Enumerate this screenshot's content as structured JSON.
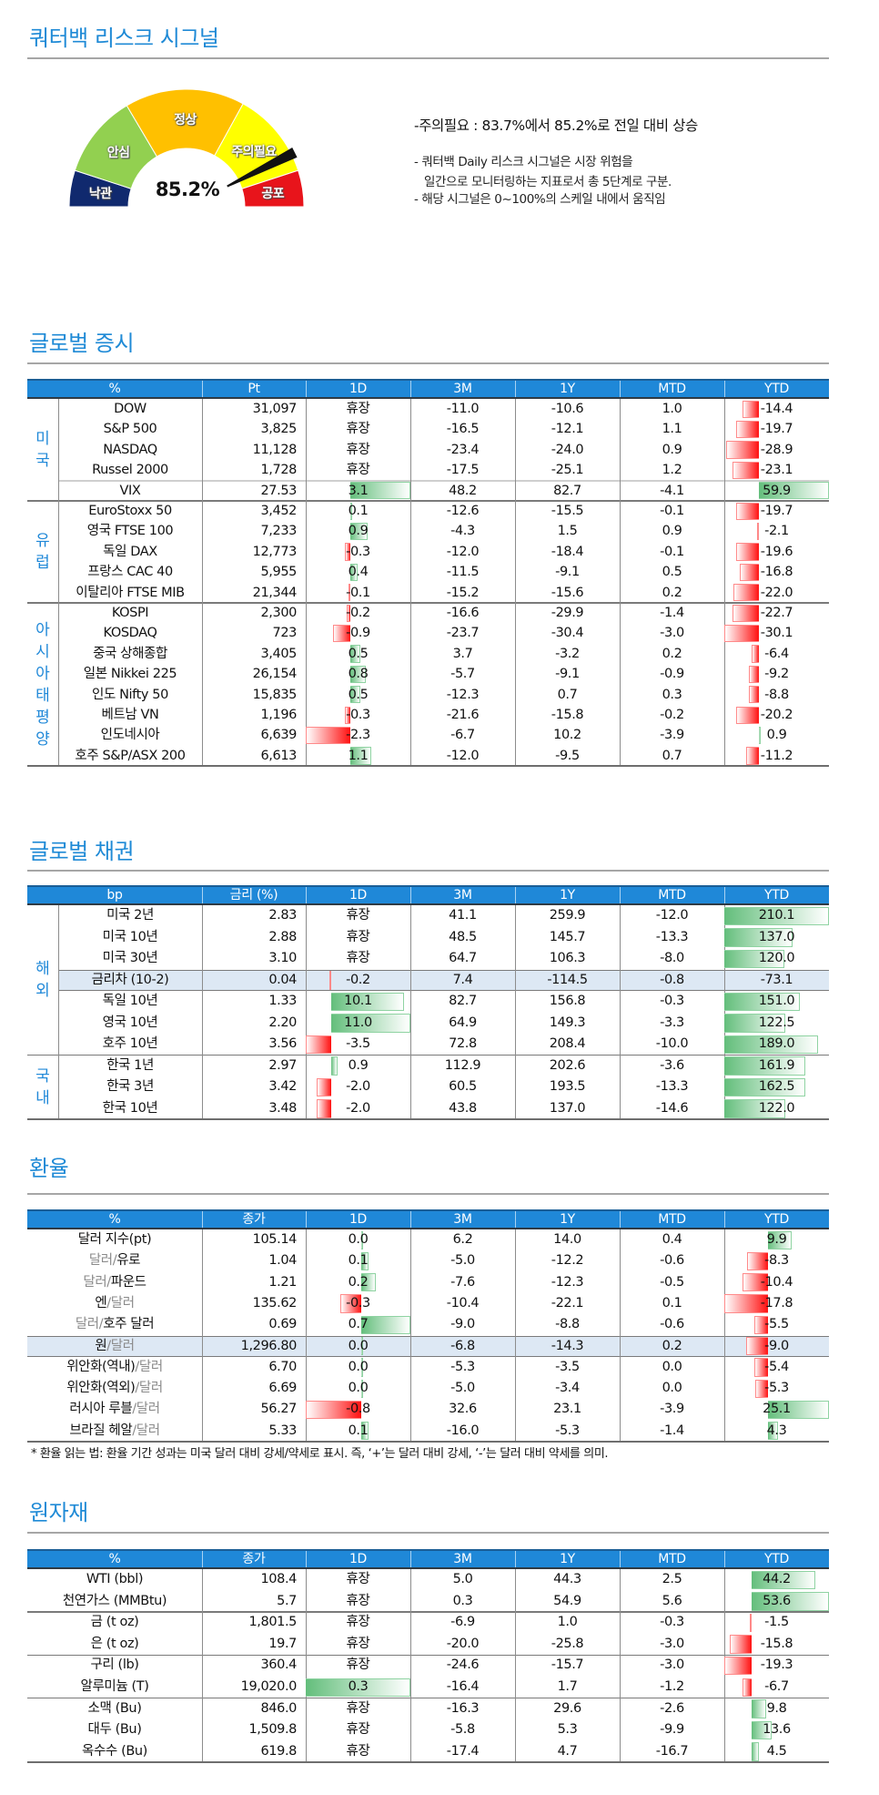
{
  "signal": {
    "title": "쿼터백 리스크 시그널",
    "value_label": "85.2%",
    "value": 85.2,
    "segments": [
      {
        "label": "낙관",
        "range": [
          0,
          10
        ],
        "color": "#10296e"
      },
      {
        "label": "안심",
        "range": [
          10,
          33
        ],
        "color": "#92d050"
      },
      {
        "label": "정상",
        "range": [
          33,
          66
        ],
        "color": "#ffc000"
      },
      {
        "label": "주의필요",
        "range": [
          66,
          90
        ],
        "color": "#ffff00"
      },
      {
        "label": "공포",
        "range": [
          90,
          100
        ],
        "color": "#e8141b"
      }
    ],
    "headline": "-주의필요 : 83.7%에서 85.2%로 전일 대비 상승",
    "notes": [
      "- 쿼터백 Daily 리스크 시그널은 시장 위험을",
      "일간으로 모니터링하는 지표로서 총 5단계로 구분.",
      "- 해당 시그널은 0~100%의 스케일 내에서 움직임"
    ]
  },
  "sections": {
    "stocks": "글로벌 증시",
    "bonds": "글로벌 채권",
    "fx": "환율",
    "commodities": "원자재"
  },
  "tables": {
    "stocks": {
      "headers": [
        "%",
        "Pt",
        "1D",
        "3M",
        "1Y",
        "MTD",
        "YTD"
      ],
      "groups": [
        {
          "label": "미국",
          "rows": [
            {
              "name": "DOW",
              "v": [
                "31,097",
                "휴장",
                "-11.0",
                "-10.6",
                "1.0",
                "-14.4"
              ]
            },
            {
              "name": "S&P 500",
              "v": [
                "3,825",
                "휴장",
                "-16.5",
                "-12.1",
                "1.1",
                "-19.7"
              ]
            },
            {
              "name": "NASDAQ",
              "v": [
                "11,128",
                "휴장",
                "-23.4",
                "-24.0",
                "0.9",
                "-28.9"
              ]
            },
            {
              "name": "Russel 2000",
              "v": [
                "1,728",
                "휴장",
                "-17.5",
                "-25.1",
                "1.2",
                "-23.1"
              ]
            },
            {
              "name": "VIX",
              "v": [
                "27.53",
                "3.1",
                "48.2",
                "82.7",
                "-4.1",
                "59.9"
              ]
            }
          ]
        },
        {
          "label": "유럽",
          "rows": [
            {
              "name": "EuroStoxx 50",
              "v": [
                "3,452",
                "0.1",
                "-12.6",
                "-15.5",
                "-0.1",
                "-19.7"
              ]
            },
            {
              "name": "영국 FTSE 100",
              "v": [
                "7,233",
                "0.9",
                "-4.3",
                "1.5",
                "0.9",
                "-2.1"
              ]
            },
            {
              "name": "독일 DAX",
              "v": [
                "12,773",
                "-0.3",
                "-12.0",
                "-18.4",
                "-0.1",
                "-19.6"
              ]
            },
            {
              "name": "프랑스 CAC 40",
              "v": [
                "5,955",
                "0.4",
                "-11.5",
                "-9.1",
                "0.5",
                "-16.8"
              ]
            },
            {
              "name": "이탈리아 FTSE MIB",
              "v": [
                "21,344",
                "-0.1",
                "-15.2",
                "-15.6",
                "0.2",
                "-22.0"
              ]
            }
          ]
        },
        {
          "label": "아시아태평양",
          "rows": [
            {
              "name": "KOSPI",
              "v": [
                "2,300",
                "-0.2",
                "-16.6",
                "-29.9",
                "-1.4",
                "-22.7"
              ]
            },
            {
              "name": "KOSDAQ",
              "v": [
                "723",
                "-0.9",
                "-23.7",
                "-30.4",
                "-3.0",
                "-30.1"
              ]
            },
            {
              "name": "중국 상해종합",
              "v": [
                "3,405",
                "0.5",
                "3.7",
                "-3.2",
                "0.2",
                "-6.4"
              ]
            },
            {
              "name": "일본 Nikkei 225",
              "v": [
                "26,154",
                "0.8",
                "-5.7",
                "-9.1",
                "-0.9",
                "-9.2"
              ]
            },
            {
              "name": "인도 Nifty 50",
              "v": [
                "15,835",
                "0.5",
                "-12.3",
                "0.7",
                "0.3",
                "-8.8"
              ]
            },
            {
              "name": "베트남 VN",
              "v": [
                "1,196",
                "-0.3",
                "-21.6",
                "-15.8",
                "-0.2",
                "-20.2"
              ]
            },
            {
              "name": "인도네시아",
              "v": [
                "6,639",
                "-2.3",
                "-6.7",
                "10.2",
                "-3.9",
                "0.9"
              ]
            },
            {
              "name": "호주 S&P/ASX 200",
              "v": [
                "6,613",
                "1.1",
                "-12.0",
                "-9.5",
                "0.7",
                "-11.2"
              ]
            }
          ]
        }
      ]
    },
    "bonds": {
      "headers": [
        "bp",
        "금리 (%)",
        "1D",
        "3M",
        "1Y",
        "MTD",
        "YTD"
      ],
      "groups": [
        {
          "label": "해외",
          "rows": [
            {
              "name": "미국 2년",
              "v": [
                "2.83",
                "휴장",
                "41.1",
                "259.9",
                "-12.0",
                "210.1"
              ]
            },
            {
              "name": "미국 10년",
              "v": [
                "2.88",
                "휴장",
                "48.5",
                "145.7",
                "-13.3",
                "137.0"
              ]
            },
            {
              "name": "미국 30년",
              "v": [
                "3.10",
                "휴장",
                "64.7",
                "106.3",
                "-8.0",
                "120.0"
              ]
            },
            {
              "name": "금리차 (10-2)",
              "v": [
                "0.04",
                "-0.2",
                "7.4",
                "-114.5",
                "-0.8",
                "-73.1"
              ],
              "ytd_bar": false
            },
            {
              "name": "독일 10년",
              "v": [
                "1.33",
                "10.1",
                "82.7",
                "156.8",
                "-0.3",
                "151.0"
              ]
            },
            {
              "name": "영국 10년",
              "v": [
                "2.20",
                "11.0",
                "64.9",
                "149.3",
                "-3.3",
                "122.5"
              ]
            },
            {
              "name": "호주 10년",
              "v": [
                "3.56",
                "-3.5",
                "72.8",
                "208.4",
                "-10.0",
                "189.0"
              ]
            }
          ]
        },
        {
          "label": "국내",
          "rows": [
            {
              "name": "한국 1년",
              "v": [
                "2.97",
                "0.9",
                "112.9",
                "202.6",
                "-3.6",
                "161.9"
              ]
            },
            {
              "name": "한국 3년",
              "v": [
                "3.42",
                "-2.0",
                "60.5",
                "193.5",
                "-13.3",
                "162.5"
              ]
            },
            {
              "name": "한국 10년",
              "v": [
                "3.48",
                "-2.0",
                "43.8",
                "137.0",
                "-14.6",
                "122.0"
              ]
            }
          ]
        }
      ]
    },
    "fx": {
      "headers": [
        "%",
        "종가",
        "1D",
        "3M",
        "1Y",
        "MTD",
        "YTD"
      ],
      "groups": [
        {
          "label": "",
          "rows": [
            {
              "name": [
                {
                  "t": "달러 지수(pt)"
                }
              ],
              "v": [
                "105.14",
                "0.0",
                "6.2",
                "14.0",
                "0.4",
                "9.9"
              ]
            },
            {
              "name": [
                {
                  "t": "달러/",
                  "muted": true
                },
                {
                  "t": "유로"
                }
              ],
              "v": [
                "1.04",
                "0.1",
                "-5.0",
                "-12.2",
                "-0.6",
                "-8.3"
              ]
            },
            {
              "name": [
                {
                  "t": "달러/",
                  "muted": true
                },
                {
                  "t": "파운드"
                }
              ],
              "v": [
                "1.21",
                "0.2",
                "-7.6",
                "-12.3",
                "-0.5",
                "-10.4"
              ]
            },
            {
              "name": [
                {
                  "t": "엔"
                },
                {
                  "t": "/달러",
                  "muted": true
                }
              ],
              "v": [
                "135.62",
                "-0.3",
                "-10.4",
                "-22.1",
                "0.1",
                "-17.8"
              ]
            },
            {
              "name": [
                {
                  "t": "달러/",
                  "muted": true
                },
                {
                  "t": "호주 달러"
                }
              ],
              "v": [
                "0.69",
                "0.7",
                "-9.0",
                "-8.8",
                "-0.6",
                "-5.5"
              ]
            },
            {
              "name": [
                {
                  "t": "원"
                },
                {
                  "t": "/달러",
                  "muted": true
                }
              ],
              "v": [
                "1,296.80",
                "0.0",
                "-6.8",
                "-14.3",
                "0.2",
                "-9.0"
              ]
            },
            {
              "name": [
                {
                  "t": "위안화(역내)"
                },
                {
                  "t": "/달러",
                  "muted": true
                }
              ],
              "v": [
                "6.70",
                "0.0",
                "-5.3",
                "-3.5",
                "0.0",
                "-5.4"
              ]
            },
            {
              "name": [
                {
                  "t": "위안화(역외)"
                },
                {
                  "t": "/달러",
                  "muted": true
                }
              ],
              "v": [
                "6.69",
                "0.0",
                "-5.0",
                "-3.4",
                "0.0",
                "-5.3"
              ]
            },
            {
              "name": [
                {
                  "t": "러시아 루블"
                },
                {
                  "t": "/달러",
                  "muted": true
                }
              ],
              "v": [
                "56.27",
                "-0.8",
                "32.6",
                "23.1",
                "-3.9",
                "25.1"
              ]
            },
            {
              "name": [
                {
                  "t": "브라질 헤알"
                },
                {
                  "t": "/달러",
                  "muted": true
                }
              ],
              "v": [
                "5.33",
                "0.1",
                "-16.0",
                "-5.3",
                "-1.4",
                "4.3"
              ]
            }
          ]
        }
      ],
      "footnote": "* 환율 읽는 법: 환율 기간 성과는 미국 달러 대비 강세/약세로 표시. 즉, ‘+’는 달러 대비 강세, ‘-’는 달러 대비 약세를 의미."
    },
    "commodities": {
      "headers": [
        "%",
        "종가",
        "1D",
        "3M",
        "1Y",
        "MTD",
        "YTD"
      ],
      "groups": [
        {
          "label": "",
          "rows": [
            {
              "name": "WTI (bbl)",
              "v": [
                "108.4",
                "휴장",
                "5.0",
                "44.3",
                "2.5",
                "44.2"
              ]
            },
            {
              "name": "천연가스 (MMBtu)",
              "v": [
                "5.7",
                "휴장",
                "0.3",
                "54.9",
                "5.6",
                "53.6"
              ]
            }
          ]
        },
        {
          "label": "",
          "rows": [
            {
              "name": "금 (t oz)",
              "v": [
                "1,801.5",
                "휴장",
                "-6.9",
                "1.0",
                "-0.3",
                "-1.5"
              ]
            },
            {
              "name": "은 (t oz)",
              "v": [
                "19.7",
                "휴장",
                "-20.0",
                "-25.8",
                "-3.0",
                "-15.8"
              ]
            }
          ]
        },
        {
          "label": "",
          "rows": [
            {
              "name": "구리 (lb)",
              "v": [
                "360.4",
                "휴장",
                "-24.6",
                "-15.7",
                "-3.0",
                "-19.3"
              ]
            },
            {
              "name": "알루미늄 (T)",
              "v": [
                "19,020.0",
                "0.3",
                "-16.4",
                "1.7",
                "-1.2",
                "-6.7"
              ]
            }
          ]
        },
        {
          "label": "",
          "rows": [
            {
              "name": "소맥 (Bu)",
              "v": [
                "846.0",
                "휴장",
                "-16.3",
                "29.6",
                "-2.6",
                "9.8"
              ]
            },
            {
              "name": "대두 (Bu)",
              "v": [
                "1,509.8",
                "휴장",
                "-5.8",
                "5.3",
                "-9.9",
                "13.6"
              ]
            },
            {
              "name": "옥수수 (Bu)",
              "v": [
                "619.8",
                "휴장",
                "-17.4",
                "4.7",
                "-16.7",
                "4.5"
              ]
            }
          ]
        }
      ]
    }
  }
}
